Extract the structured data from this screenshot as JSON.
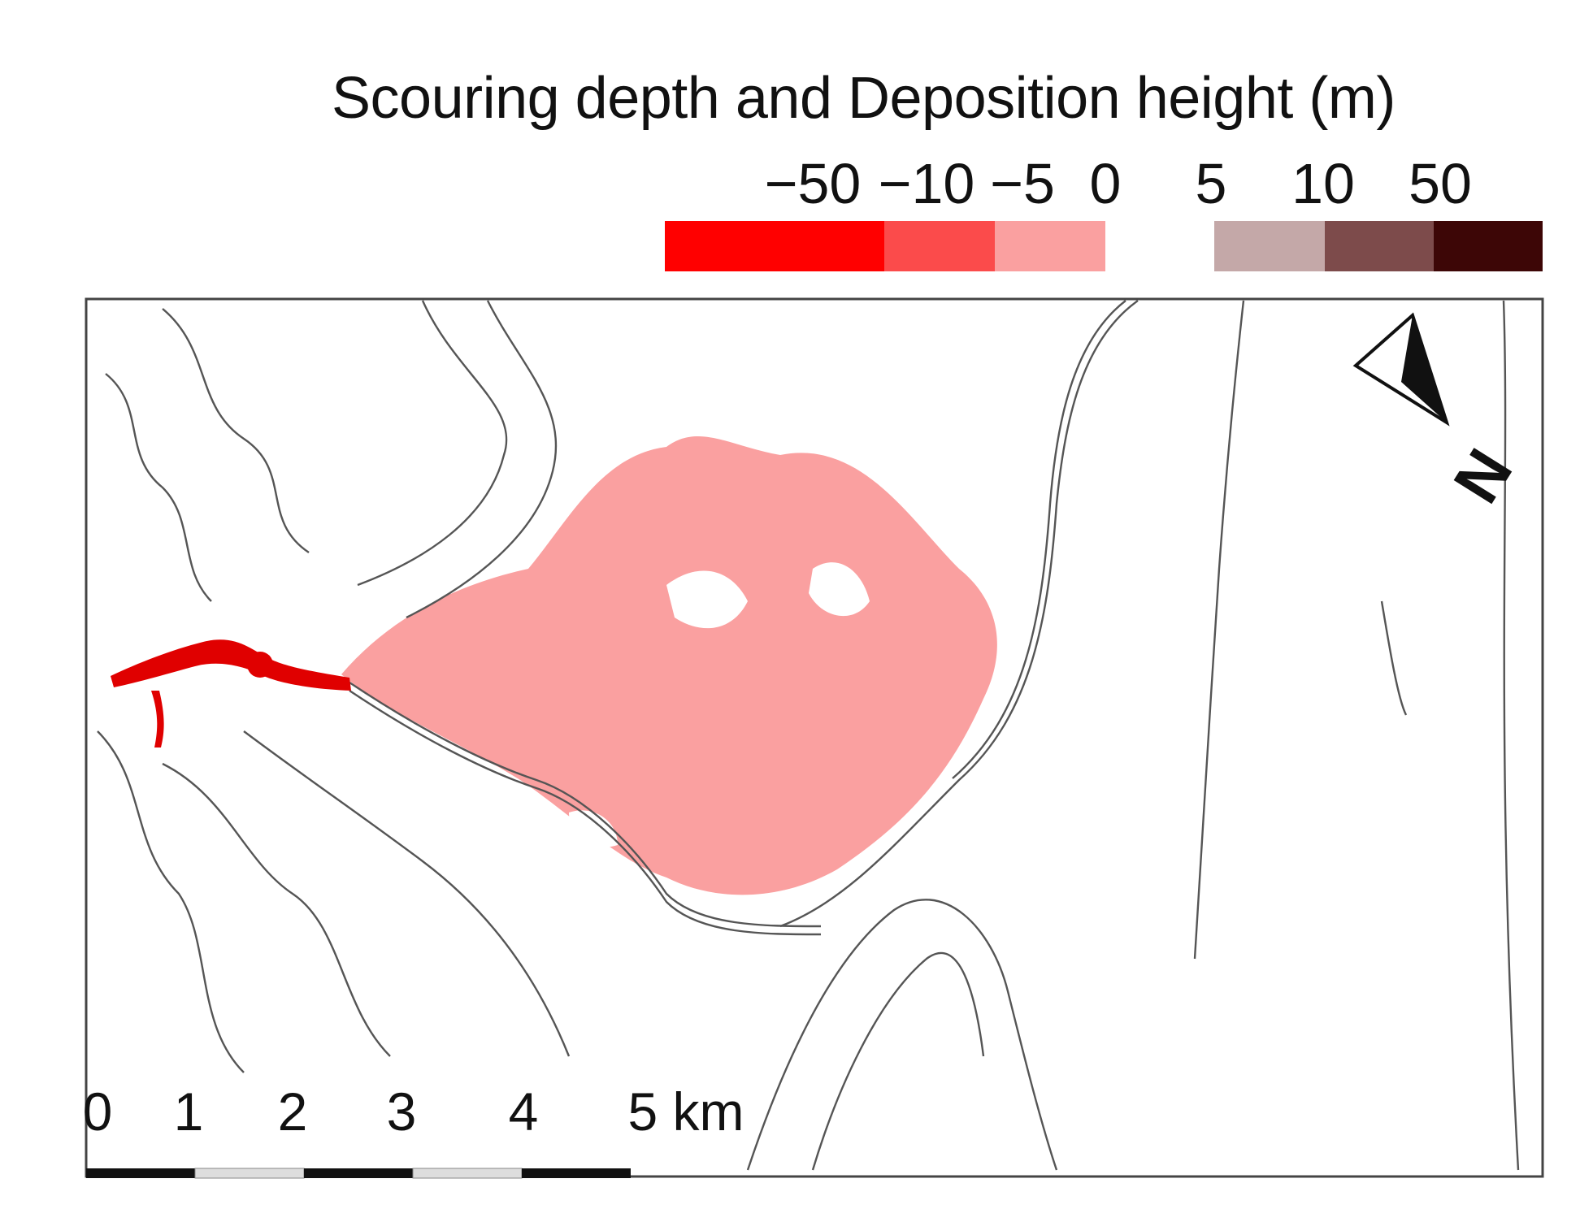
{
  "legend": {
    "title": "Scouring depth and Deposition height (m)",
    "ticks": [
      "−50",
      "−10",
      "−5",
      "0",
      "5",
      "10",
      "50"
    ],
    "classes": [
      {
        "color": "#ff0000"
      },
      {
        "color": "#fb4b4b"
      },
      {
        "color": "#faa0a0"
      },
      {
        "color": "#ffffff"
      },
      {
        "color": "#c4a8a8"
      },
      {
        "color": "#7d4b4b"
      },
      {
        "color": "#3d0606"
      }
    ]
  },
  "scale_bar": {
    "labels": [
      "0",
      "1",
      "2",
      "3",
      "4",
      "5 km"
    ]
  },
  "north_arrow": {
    "label": "N"
  },
  "colors": {
    "contour": "#555555",
    "deposition_fill": "#faa0a0",
    "scour": "#e00000"
  }
}
